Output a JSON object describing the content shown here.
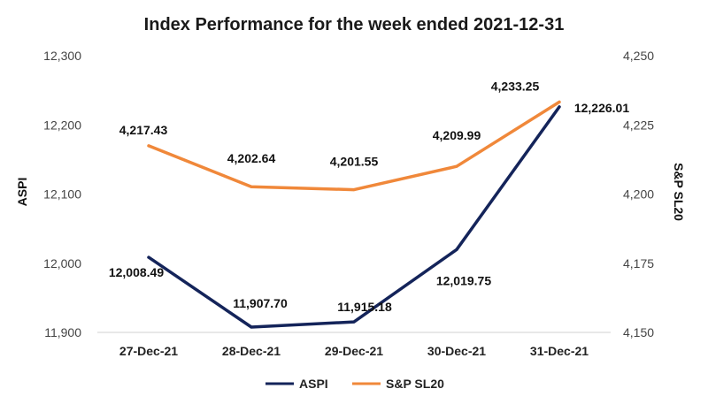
{
  "chart_data": {
    "type": "line",
    "title": "Index Performance for the week ended 2021-12-31",
    "categories": [
      "27-Dec-21",
      "28-Dec-21",
      "29-Dec-21",
      "30-Dec-21",
      "31-Dec-21"
    ],
    "y_left": {
      "label": "ASPI",
      "range": [
        11900,
        12300
      ],
      "ticks": [
        "11,900",
        "12,000",
        "12,100",
        "12,200",
        "12,300"
      ]
    },
    "y_right": {
      "label": "S&P SL20",
      "range": [
        4150,
        4250
      ],
      "ticks": [
        "4,150",
        "4,175",
        "4,200",
        "4,225",
        "4,250"
      ]
    },
    "series": [
      {
        "name": "ASPI",
        "axis": "left",
        "color": "#14245a",
        "values": [
          12008.49,
          11907.7,
          11915.18,
          12019.75,
          12226.01
        ],
        "labels": [
          "12,008.49",
          "11,907.70",
          "11,915.18",
          "12,019.75",
          "12,226.01"
        ]
      },
      {
        "name": "S&P SL20",
        "axis": "right",
        "color": "#f0883a",
        "values": [
          4217.43,
          4202.64,
          4201.55,
          4209.99,
          4233.25
        ],
        "labels": [
          "4,217.43",
          "4,202.64",
          "4,201.55",
          "4,209.99",
          "4,233.25"
        ]
      }
    ],
    "grid": false,
    "legend": "bottom"
  }
}
